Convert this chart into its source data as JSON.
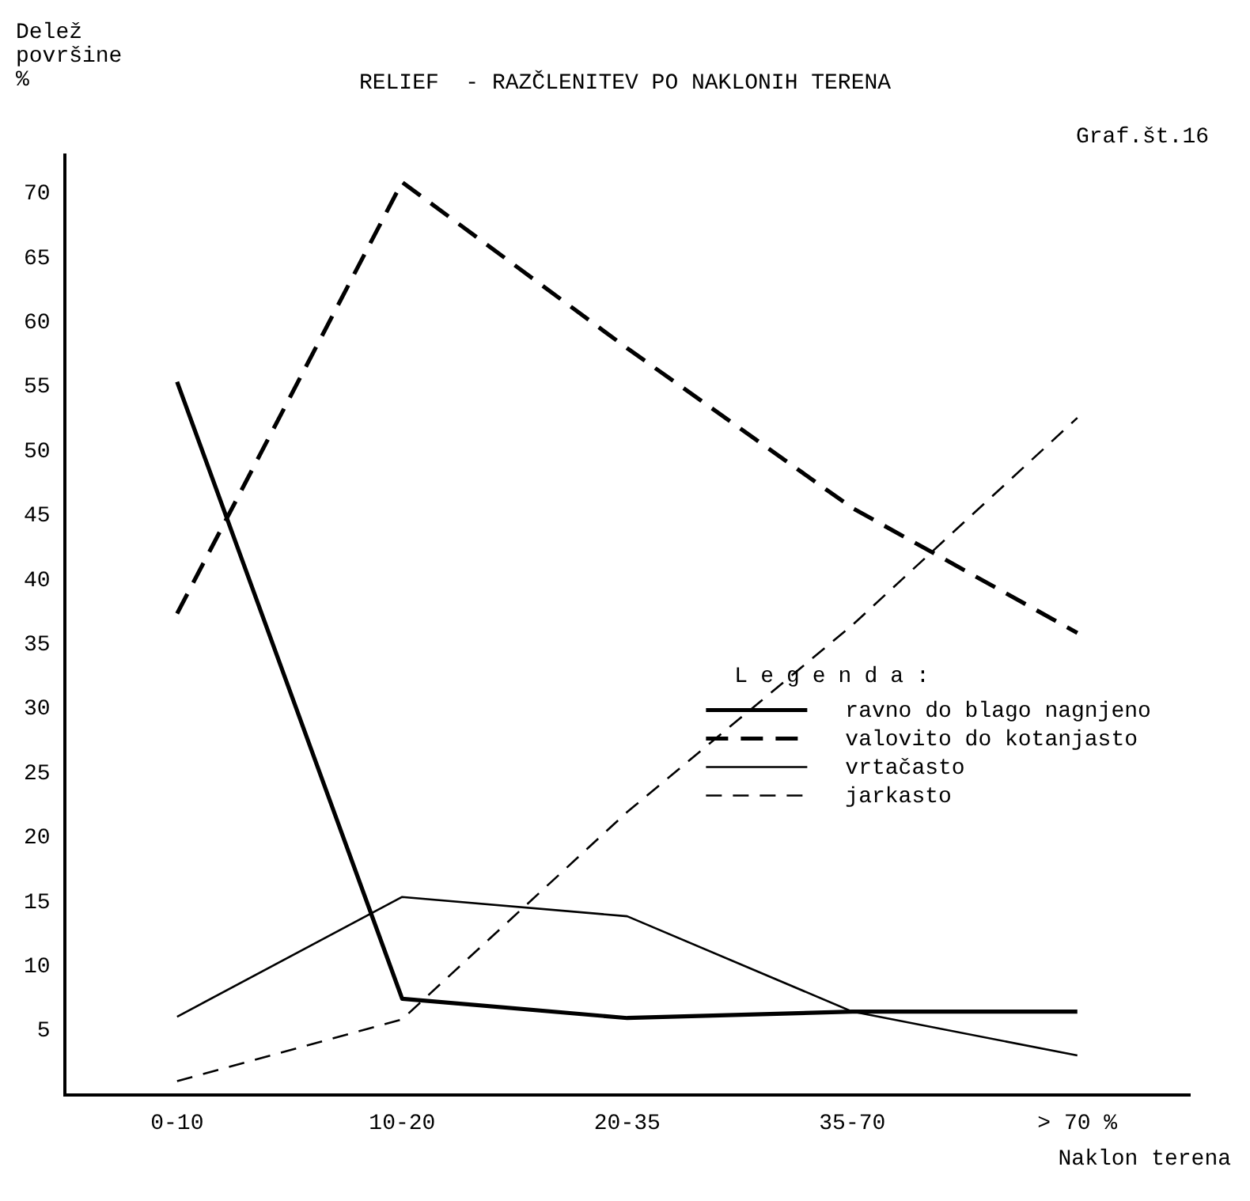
{
  "chart_data": {
    "type": "line",
    "title": "RELIEF  - RAZČLENITEV PO NAKLONIH TERENA",
    "ylabel": "Delež površine %",
    "xlabel": "Naklon terena",
    "annotations": [
      "Graf.št.16"
    ],
    "legend_title": "Legenda:",
    "legend": "right",
    "categories": [
      "0-10",
      "10-20",
      "20-35",
      "35-70",
      "> 70 %"
    ],
    "ylim": [
      0,
      73
    ],
    "yticks": [
      5,
      10,
      15,
      20,
      25,
      30,
      35,
      40,
      45,
      50,
      55,
      60,
      65,
      70
    ],
    "grid": false,
    "marker": "none",
    "series": [
      {
        "name": "ravno do blago nagnjeno",
        "color": "#000000",
        "line_style": "solid",
        "values": [
          55.4,
          7.5,
          6.0,
          6.5,
          6.5
        ]
      },
      {
        "name": "valovito do kotanjasto",
        "color": "#000000",
        "line_style": "dashed",
        "values": [
          37.4,
          70.9,
          58.0,
          45.6,
          35.9
        ]
      },
      {
        "name": "vrtačasto",
        "color": "#000000",
        "line_style": "solid",
        "values": [
          6.1,
          15.4,
          13.9,
          6.5,
          3.1
        ]
      },
      {
        "name": "jarkasto",
        "color": "#000000",
        "line_style": "dashed",
        "values": [
          1.1,
          5.9,
          22.0,
          36.5,
          52.6
        ]
      }
    ]
  }
}
